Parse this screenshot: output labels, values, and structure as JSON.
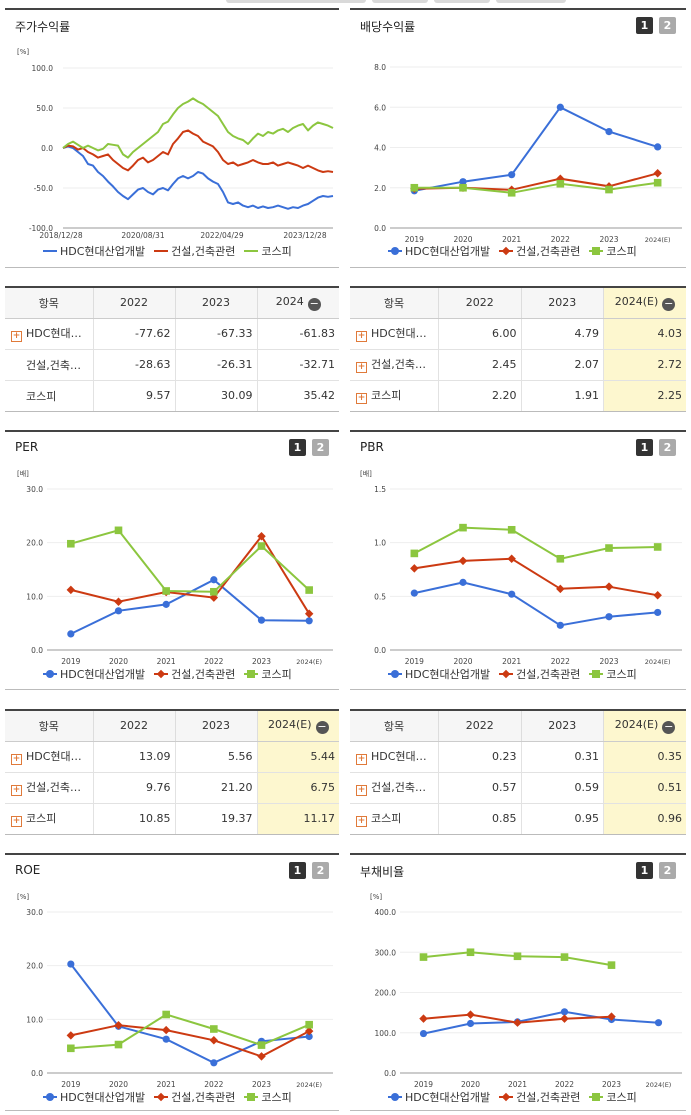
{
  "stock_return": {
    "title": "주가수익률",
    "unit": "[%]",
    "legend": [
      "HDC현대산업개발",
      "건설,건축관련",
      "코스피"
    ],
    "table": {
      "header": [
        "항목",
        "2022",
        "2023",
        "2024"
      ],
      "rows": [
        {
          "name": "HDC현대…",
          "plus": true,
          "values": [
            "-77.62",
            "-67.33",
            "-61.83"
          ]
        },
        {
          "name": "건설,건축…",
          "plus": false,
          "values": [
            "-28.63",
            "-26.31",
            "-32.71"
          ]
        },
        {
          "name": "코스피",
          "plus": false,
          "values": [
            "9.57",
            "30.09",
            "35.42"
          ]
        }
      ]
    }
  },
  "dividend": {
    "title": "배당수익률",
    "pager": [
      "1",
      "2"
    ],
    "unit": "",
    "legend": [
      "HDC현대산업개발",
      "건설,건축관련",
      "코스피"
    ],
    "table": {
      "header": [
        "항목",
        "2022",
        "2023",
        "2024(E)"
      ],
      "rows": [
        {
          "name": "HDC현대…",
          "plus": true,
          "values": [
            "6.00",
            "4.79",
            "4.03"
          ]
        },
        {
          "name": "건설,건축…",
          "plus": true,
          "values": [
            "2.45",
            "2.07",
            "2.72"
          ]
        },
        {
          "name": "코스피",
          "plus": true,
          "values": [
            "2.20",
            "1.91",
            "2.25"
          ]
        }
      ]
    }
  },
  "per": {
    "title": "PER",
    "pager": [
      "1",
      "2"
    ],
    "unit": "[배]",
    "legend": [
      "HDC현대산업개발",
      "건설,건축관련",
      "코스피"
    ],
    "table": {
      "header": [
        "항목",
        "2022",
        "2023",
        "2024(E)"
      ],
      "rows": [
        {
          "name": "HDC현대…",
          "plus": true,
          "values": [
            "13.09",
            "5.56",
            "5.44"
          ]
        },
        {
          "name": "건설,건축…",
          "plus": true,
          "values": [
            "9.76",
            "21.20",
            "6.75"
          ]
        },
        {
          "name": "코스피",
          "plus": true,
          "values": [
            "10.85",
            "19.37",
            "11.17"
          ]
        }
      ]
    }
  },
  "pbr": {
    "title": "PBR",
    "pager": [
      "1",
      "2"
    ],
    "unit": "[배]",
    "legend": [
      "HDC현대산업개발",
      "건설,건축관련",
      "코스피"
    ],
    "table": {
      "header": [
        "항목",
        "2022",
        "2023",
        "2024(E)"
      ],
      "rows": [
        {
          "name": "HDC현대…",
          "plus": true,
          "values": [
            "0.23",
            "0.31",
            "0.35"
          ]
        },
        {
          "name": "건설,건축…",
          "plus": true,
          "values": [
            "0.57",
            "0.59",
            "0.51"
          ]
        },
        {
          "name": "코스피",
          "plus": true,
          "values": [
            "0.85",
            "0.95",
            "0.96"
          ]
        }
      ]
    }
  },
  "roe": {
    "title": "ROE",
    "pager": [
      "1",
      "2"
    ],
    "unit": "[%]",
    "legend": [
      "HDC현대산업개발",
      "건설,건축관련",
      "코스피"
    ]
  },
  "debt": {
    "title": "부채비율",
    "pager": [
      "1",
      "2"
    ],
    "unit": "[%]",
    "legend": [
      "HDC현대산업개발",
      "건설,건축관련",
      "코스피"
    ]
  },
  "colors": {
    "hdc": "#3a6fd8",
    "const": "#cc3a12",
    "kospi": "#8cc63f"
  },
  "chart_data": [
    {
      "id": "stock_return",
      "type": "line",
      "x_ticks": [
        "2018/12/28",
        "2020/08/31",
        "2022/04/29",
        "2023/12/28"
      ],
      "y_ticks": [
        "100.0",
        "50.0",
        "0.0",
        "-50.0",
        "-100.0"
      ],
      "ylim": [
        -100,
        100
      ],
      "series": [
        {
          "name": "HDC현대산업개발",
          "values": [
            0,
            2,
            0,
            -5,
            -10,
            -20,
            -22,
            -30,
            -35,
            -42,
            -48,
            -55,
            -60,
            -64,
            -58,
            -52,
            -50,
            -55,
            -58,
            -52,
            -50,
            -53,
            -45,
            -38,
            -35,
            -38,
            -35,
            -30,
            -32,
            -38,
            -42,
            -45,
            -55,
            -68,
            -70,
            -68,
            -72,
            -74,
            -72,
            -75,
            -73,
            -75,
            -74,
            -72,
            -74,
            -76,
            -74,
            -75,
            -72,
            -70,
            -66,
            -62,
            -60,
            -61,
            -60
          ]
        },
        {
          "name": "건설,건축관련",
          "values": [
            0,
            3,
            2,
            -2,
            0,
            -5,
            -8,
            -12,
            -10,
            -8,
            -15,
            -20,
            -25,
            -28,
            -22,
            -15,
            -12,
            -18,
            -15,
            -10,
            -5,
            -8,
            5,
            12,
            20,
            22,
            18,
            15,
            8,
            5,
            2,
            -5,
            -15,
            -20,
            -18,
            -22,
            -20,
            -18,
            -15,
            -18,
            -20,
            -20,
            -18,
            -22,
            -20,
            -18,
            -20,
            -22,
            -25,
            -22,
            -25,
            -28,
            -30,
            -29,
            -30
          ]
        },
        {
          "name": "코스피",
          "values": [
            0,
            5,
            8,
            4,
            0,
            3,
            0,
            -3,
            -1,
            5,
            4,
            3,
            -8,
            -12,
            -5,
            0,
            5,
            10,
            15,
            20,
            30,
            33,
            42,
            50,
            55,
            58,
            62,
            58,
            55,
            50,
            45,
            40,
            30,
            20,
            15,
            12,
            10,
            5,
            12,
            18,
            15,
            20,
            18,
            22,
            24,
            20,
            25,
            28,
            30,
            22,
            28,
            32,
            30,
            28,
            25
          ]
        }
      ]
    },
    {
      "id": "dividend",
      "type": "line",
      "x": [
        "2019",
        "2020",
        "2021",
        "2022",
        "2023",
        "2024(E)"
      ],
      "y_ticks": [
        "8.0",
        "6.0",
        "4.0",
        "2.0",
        "0.0"
      ],
      "ylim": [
        0,
        8
      ],
      "series": [
        {
          "name": "HDC현대산업개발",
          "values": [
            1.85,
            2.3,
            2.65,
            6.0,
            4.79,
            4.03
          ]
        },
        {
          "name": "건설,건축관련",
          "values": [
            1.95,
            2.0,
            1.9,
            2.45,
            2.07,
            2.72
          ]
        },
        {
          "name": "코스피",
          "values": [
            2.0,
            2.0,
            1.75,
            2.2,
            1.91,
            2.25
          ]
        }
      ]
    },
    {
      "id": "per",
      "type": "line",
      "x": [
        "2019",
        "2020",
        "2021",
        "2022",
        "2023",
        "2024(E)"
      ],
      "y_ticks": [
        "30.0",
        "20.0",
        "10.0",
        "0.0"
      ],
      "ylim": [
        0,
        30
      ],
      "series": [
        {
          "name": "HDC현대산업개발",
          "values": [
            3.0,
            7.3,
            8.5,
            13.09,
            5.56,
            5.44
          ]
        },
        {
          "name": "건설,건축관련",
          "values": [
            11.2,
            9.0,
            10.8,
            9.76,
            21.2,
            6.75
          ]
        },
        {
          "name": "코스피",
          "values": [
            19.8,
            22.3,
            11.0,
            10.85,
            19.37,
            11.17
          ]
        }
      ]
    },
    {
      "id": "pbr",
      "type": "line",
      "x": [
        "2019",
        "2020",
        "2021",
        "2022",
        "2023",
        "2024(E)"
      ],
      "y_ticks": [
        "1.5",
        "1.0",
        "0.5",
        "0.0"
      ],
      "ylim": [
        0,
        1.5
      ],
      "series": [
        {
          "name": "HDC현대산업개발",
          "values": [
            0.53,
            0.63,
            0.52,
            0.23,
            0.31,
            0.35
          ]
        },
        {
          "name": "건설,건축관련",
          "values": [
            0.76,
            0.83,
            0.85,
            0.57,
            0.59,
            0.51
          ]
        },
        {
          "name": "코스피",
          "values": [
            0.9,
            1.14,
            1.12,
            0.85,
            0.95,
            0.96
          ]
        }
      ]
    },
    {
      "id": "roe",
      "type": "line",
      "x": [
        "2019",
        "2020",
        "2021",
        "2022",
        "2023",
        "2024(E)"
      ],
      "y_ticks": [
        "30.0",
        "20.0",
        "10.0",
        "0.0"
      ],
      "ylim": [
        0,
        30
      ],
      "series": [
        {
          "name": "HDC현대산업개발",
          "values": [
            20.3,
            8.7,
            6.3,
            1.9,
            5.9,
            6.8
          ]
        },
        {
          "name": "건설,건축관련",
          "values": [
            7.0,
            8.9,
            8.0,
            6.1,
            3.1,
            7.8
          ]
        },
        {
          "name": "코스피",
          "values": [
            4.6,
            5.3,
            10.9,
            8.2,
            5.2,
            9.0
          ]
        }
      ]
    },
    {
      "id": "debt",
      "type": "line",
      "x": [
        "2019",
        "2020",
        "2021",
        "2022",
        "2023",
        "2024(E)"
      ],
      "y_ticks": [
        "400.0",
        "300.0",
        "200.0",
        "100.0",
        "0.0"
      ],
      "ylim": [
        0,
        400
      ],
      "series": [
        {
          "name": "HDC현대산업개발",
          "values": [
            98,
            123,
            127,
            152,
            133,
            125
          ]
        },
        {
          "name": "건설,건축관련",
          "values": [
            135,
            145,
            125,
            135,
            140,
            null
          ]
        },
        {
          "name": "코스피",
          "values": [
            288,
            300,
            290,
            288,
            268,
            null
          ]
        }
      ]
    }
  ]
}
